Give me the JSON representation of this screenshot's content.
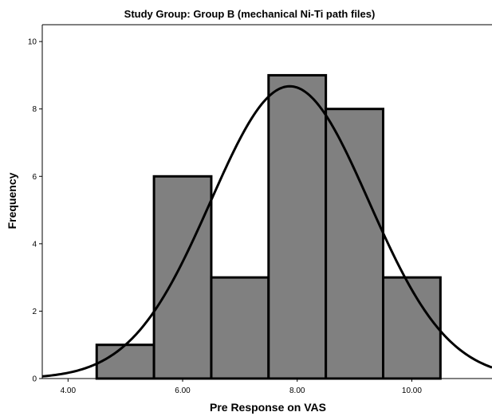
{
  "chart_data": {
    "type": "histogram",
    "title": "Study Group: Group B (mechanical Ni-Ti path files)",
    "xlabel": "Pre Response on VAS",
    "ylabel": "Frequency",
    "xlim": [
      3.55,
      11.4
    ],
    "ylim": [
      0,
      10.5
    ],
    "x_ticks": [
      "4.00",
      "6.00",
      "8.00",
      "10.00"
    ],
    "x_tick_values": [
      4,
      6,
      8,
      10
    ],
    "y_ticks": [
      "0",
      "2",
      "4",
      "6",
      "8",
      "10"
    ],
    "y_tick_values": [
      0,
      2,
      4,
      6,
      8,
      10
    ],
    "bins": [
      {
        "start": 4.5,
        "end": 5.5,
        "count": 1
      },
      {
        "start": 5.5,
        "end": 6.5,
        "count": 6
      },
      {
        "start": 6.5,
        "end": 7.5,
        "count": 3
      },
      {
        "start": 7.5,
        "end": 8.5,
        "count": 9
      },
      {
        "start": 8.5,
        "end": 9.5,
        "count": 8
      },
      {
        "start": 9.5,
        "end": 10.5,
        "count": 3
      }
    ],
    "normal_curve": {
      "mean": 7.87,
      "std_dev": 1.38,
      "n": 30,
      "bin_width": 1
    },
    "bar_color": "#808080",
    "grid": false
  }
}
